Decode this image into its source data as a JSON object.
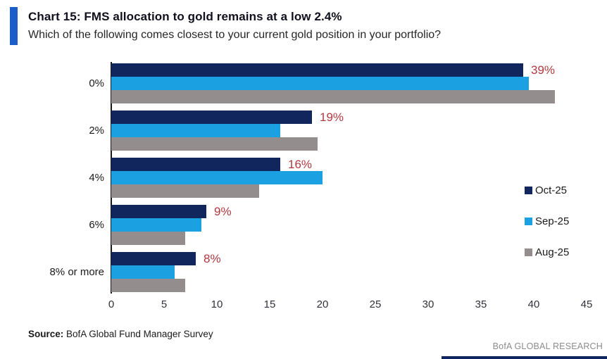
{
  "header": {
    "title": "Chart 15: FMS allocation to gold remains at a low 2.4%",
    "subtitle": "Which of the following comes closest to your current gold position in your portfolio?"
  },
  "chart_data": {
    "type": "bar",
    "orientation": "horizontal",
    "title": "Chart 15: FMS allocation to gold remains at a low 2.4%",
    "subtitle": "Which of the following comes closest to your current gold position in your portfolio?",
    "categories": [
      "0%",
      "2%",
      "4%",
      "6%",
      "8% or more"
    ],
    "series": [
      {
        "name": "Oct-25",
        "color": "#12265E",
        "values": [
          39,
          19,
          16,
          9,
          8
        ]
      },
      {
        "name": "Sep-25",
        "color": "#1BA0E2",
        "values": [
          39.5,
          16,
          20,
          8.5,
          6
        ]
      },
      {
        "name": "Aug-25",
        "color": "#948D8D",
        "values": [
          42,
          19.5,
          14,
          7,
          7
        ]
      }
    ],
    "data_labels": {
      "labeled_series": "Oct-25",
      "values": [
        "39%",
        "19%",
        "16%",
        "9%",
        "8%"
      ],
      "color": "#B0393F"
    },
    "xlim": [
      0,
      45
    ],
    "x_ticks": [
      0,
      5,
      10,
      15,
      20,
      25,
      30,
      35,
      40,
      45
    ],
    "grid": false,
    "legend_position": "right"
  },
  "footer": {
    "source_label": "Source:",
    "source_text": " BofA Global Fund Manager Survey",
    "branding": "BofA GLOBAL RESEARCH"
  },
  "colors": {
    "accent_blue": "#1C5DC9",
    "oct_navy": "#12265E",
    "sep_blue": "#1BA0E2",
    "aug_gray": "#948D8D",
    "label_red": "#B0393F",
    "axis_black": "#1a1a1a",
    "branding_gray": "#8C8C8C"
  }
}
